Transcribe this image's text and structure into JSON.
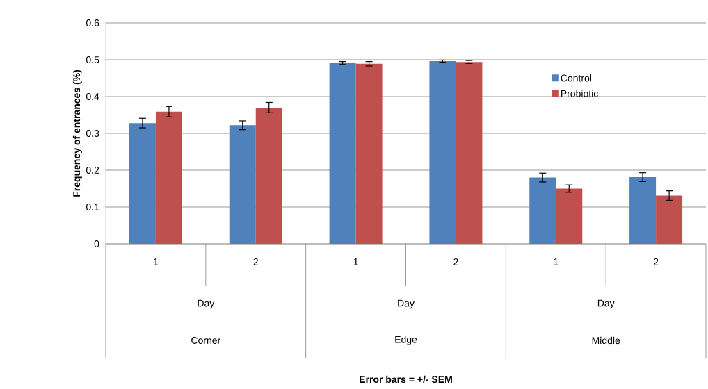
{
  "chart_data": {
    "type": "bar",
    "categories": [
      "1",
      "2",
      "1",
      "2",
      "1",
      "2"
    ],
    "annotations": [
      "Day",
      "Day",
      "Day",
      "Corner",
      "Edge",
      "Middle",
      "Error bars = +/- SEM"
    ],
    "ylabel": "Frequency of entrances (%)",
    "series": [
      {
        "name": "Control",
        "color": "#4f81bd",
        "values": [
          0.328,
          0.322,
          0.491,
          0.496,
          0.18,
          0.181
        ],
        "errors": [
          0.013,
          0.012,
          0.004,
          0.003,
          0.012,
          0.012
        ]
      },
      {
        "name": "Probiotic",
        "color": "#c0504d",
        "values": [
          0.359,
          0.37,
          0.489,
          0.494,
          0.15,
          0.131
        ],
        "errors": [
          0.014,
          0.014,
          0.006,
          0.004,
          0.01,
          0.013
        ]
      }
    ],
    "ylim": [
      0,
      0.6
    ],
    "yticks": [
      0,
      0.1,
      0.2,
      0.3,
      0.4,
      0.5,
      0.6
    ],
    "grid": "y",
    "legend": "right"
  }
}
